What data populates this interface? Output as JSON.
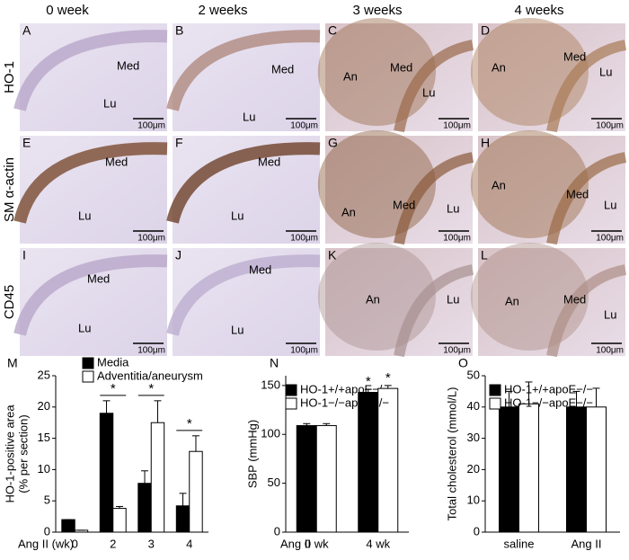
{
  "column_headers": [
    "0 week",
    "2 weeks",
    "3 weeks",
    "4 weeks"
  ],
  "row_labels": [
    "HO-1",
    "SM α-actin",
    "CD45"
  ],
  "panels": [
    {
      "letter": "A",
      "labels": [
        "Med",
        "Lu"
      ],
      "scale_bar": "100μm"
    },
    {
      "letter": "B",
      "labels": [
        "Med",
        "Lu"
      ],
      "scale_bar": "100μm"
    },
    {
      "letter": "C",
      "labels": [
        "An",
        "Med",
        "Lu"
      ],
      "scale_bar": "100μm"
    },
    {
      "letter": "D",
      "labels": [
        "An",
        "Med",
        "Lu"
      ],
      "scale_bar": "100μm"
    },
    {
      "letter": "E",
      "labels": [
        "Med",
        "Lu"
      ],
      "scale_bar": "100μm"
    },
    {
      "letter": "F",
      "labels": [
        "Med",
        "Lu"
      ],
      "scale_bar": "100μm"
    },
    {
      "letter": "G",
      "labels": [
        "An",
        "Med",
        "Lu"
      ],
      "scale_bar": "100μm"
    },
    {
      "letter": "H",
      "labels": [
        "An",
        "Med",
        "Lu"
      ],
      "scale_bar": "100μm"
    },
    {
      "letter": "I",
      "labels": [
        "Med",
        "Lu"
      ],
      "scale_bar": "100μm"
    },
    {
      "letter": "J",
      "labels": [
        "Med",
        "Lu"
      ],
      "scale_bar": "100μm"
    },
    {
      "letter": "K",
      "labels": [
        "An",
        "Lu"
      ],
      "scale_bar": "100μm"
    },
    {
      "letter": "L",
      "labels": [
        "An",
        "Med",
        "Lu"
      ],
      "scale_bar": "100μm"
    }
  ],
  "chart_data": [
    {
      "type": "bar",
      "panel": "M",
      "ylabel": [
        "HO-1-positive area",
        "(% per section)"
      ],
      "xlabel": "Ang II (wk)",
      "categories": [
        "0",
        "2",
        "3",
        "4"
      ],
      "series": [
        {
          "name": "Media",
          "color": "#000000",
          "values": [
            2,
            19,
            7.8,
            4.2
          ],
          "errors": [
            0,
            2,
            2,
            2
          ]
        },
        {
          "name": "Adventitia/aneurysm",
          "color": "#ffffff",
          "values": [
            0.3,
            3.8,
            17.5,
            12.9
          ],
          "errors": [
            0,
            0.3,
            3.5,
            2.5
          ]
        }
      ],
      "ylim": [
        0,
        25
      ],
      "yticks": [
        0,
        5,
        10,
        15,
        20,
        25
      ],
      "annotations": [
        {
          "text": "*",
          "category": 1
        },
        {
          "text": "*",
          "category": 2
        },
        {
          "text": "*",
          "category": 3
        }
      ]
    },
    {
      "type": "bar",
      "panel": "N",
      "ylabel": [
        "SBP (mmHg)"
      ],
      "xlabel": "Ang II",
      "categories": [
        "0 wk",
        "4 wk"
      ],
      "series": [
        {
          "name": "HO-1+/+apoE−/−",
          "color": "#000000",
          "values": [
            109,
            143
          ],
          "errors": [
            2,
            3
          ]
        },
        {
          "name": "HO-1−/−apoE−/−",
          "color": "#ffffff",
          "values": [
            109,
            147
          ],
          "errors": [
            2,
            3
          ]
        }
      ],
      "ylim": [
        0,
        160
      ],
      "yticks": [
        0,
        50,
        100,
        150
      ],
      "annotations": [
        {
          "text": "*",
          "category": 1,
          "series": 0
        },
        {
          "text": "*",
          "category": 1,
          "series": 1
        }
      ]
    },
    {
      "type": "bar",
      "panel": "O",
      "ylabel": [
        "Total cholesterol (mmol/L)"
      ],
      "categories": [
        "saline",
        "Ang II"
      ],
      "series": [
        {
          "name": "HO-1+/+apoE−/−",
          "color": "#000000",
          "values": [
            40,
            40
          ],
          "errors": [
            5,
            5
          ]
        },
        {
          "name": "HO-1−/−apoE−/−",
          "color": "#ffffff",
          "values": [
            41,
            40
          ],
          "errors": [
            7,
            6
          ]
        }
      ],
      "ylim": [
        0,
        50
      ],
      "yticks": [
        0,
        10,
        20,
        30,
        40,
        50
      ]
    }
  ]
}
